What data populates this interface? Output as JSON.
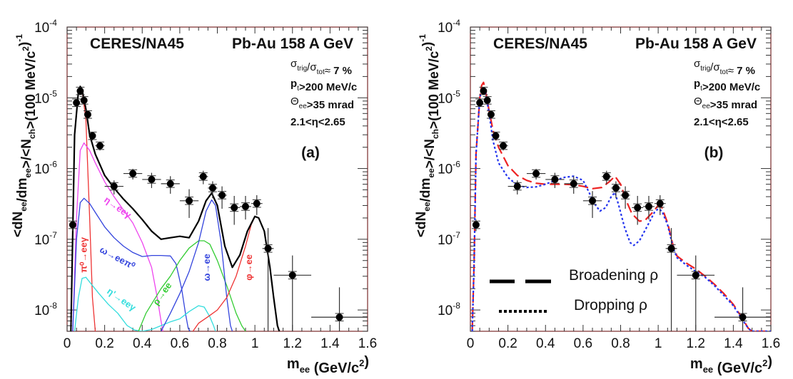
{
  "chart_data": [
    {
      "id": "a",
      "type": "line",
      "panel_label": "(a)",
      "title_left": "CERES/NA45",
      "title_right": "Pb-Au 158 A GeV",
      "annotations": [
        "σtrig/σtot≈ 7 %",
        "pt>200 MeV/c",
        "Θee>35 mrad",
        "2.1<η<2.65"
      ],
      "xlabel": "m_ee (GeV/c^2)",
      "ylabel": "<dN_ee/dm_ee>/<N_ch>(100 MeV/c^2)^-1",
      "xlim": [
        0,
        1.6
      ],
      "ylim": [
        5e-09,
        0.0001
      ],
      "yscale": "log",
      "x_ticks": [
        "0",
        "0.2",
        "0.4",
        "0.6",
        "0.8",
        "1",
        "1.2",
        "1.4",
        "1.6"
      ],
      "y_ticks": [
        "10^-4",
        "10^-5",
        "10^-6",
        "10^-7",
        "10^-8"
      ],
      "data_points": {
        "x": [
          0.03,
          0.05,
          0.07,
          0.09,
          0.11,
          0.135,
          0.175,
          0.25,
          0.35,
          0.45,
          0.55,
          0.65,
          0.725,
          0.775,
          0.825,
          0.89,
          0.95,
          1.01,
          1.07,
          1.2,
          1.45
        ],
        "y": [
          1.6e-07,
          8.5e-06,
          1.25e-05,
          9.2e-06,
          5.8e-06,
          2.9e-06,
          2.1e-06,
          5.6e-07,
          8.5e-07,
          7e-07,
          6.1e-07,
          3.5e-07,
          7.7e-07,
          5.3e-07,
          4.2e-07,
          2.8e-07,
          2.9e-07,
          3.2e-07,
          7.4e-08,
          3.1e-08,
          7.9e-09
        ],
        "xerr": [
          0.01,
          0.01,
          0.01,
          0.01,
          0.01,
          0.015,
          0.025,
          0.05,
          0.05,
          0.05,
          0.05,
          0.05,
          0.025,
          0.025,
          0.025,
          0.03,
          0.03,
          0.03,
          0.03,
          0.1,
          0.15
        ],
        "yerr_lo": [
          3e-08,
          1e-06,
          1.3e-06,
          1e-06,
          7e-07,
          4e-07,
          3e-07,
          1.3e-07,
          1.5e-07,
          1.7e-07,
          1.7e-07,
          1.5e-07,
          1.7e-07,
          1.5e-07,
          1.5e-07,
          1.2e-07,
          1e-07,
          1e-07,
          6.9e-08,
          2.6e-08,
          3e-09
        ],
        "yerr_hi": [
          3e-08,
          1e-06,
          1.3e-06,
          1e-06,
          7e-07,
          4e-07,
          3e-07,
          1.2e-07,
          1.4e-07,
          1.7e-07,
          1.7e-07,
          1.6e-07,
          1.6e-07,
          1.3e-07,
          1.4e-07,
          1.3e-07,
          1.2e-07,
          1e-07,
          7e-08,
          2.8e-08,
          1.3e-08
        ]
      },
      "series": [
        {
          "name": "total cocktail",
          "color": "#000000",
          "style": "solid",
          "x": [
            0.02,
            0.04,
            0.06,
            0.07,
            0.08,
            0.1,
            0.12,
            0.15,
            0.2,
            0.25,
            0.3,
            0.35,
            0.4,
            0.45,
            0.5,
            0.55,
            0.6,
            0.65,
            0.7,
            0.74,
            0.77,
            0.8,
            0.84,
            0.88,
            0.92,
            0.96,
            1.0,
            1.02,
            1.05,
            1.08,
            1.1,
            1.12,
            1.13
          ],
          "y": [
            5e-09,
            3e-06,
            1.2e-05,
            1.45e-05,
            1.3e-05,
            7e-06,
            3e-06,
            1.6e-06,
            8e-07,
            5.3e-07,
            3.7e-07,
            2.7e-07,
            1.9e-07,
            1.3e-07,
            1e-07,
            1.05e-07,
            1.1e-07,
            1.05e-07,
            1.8e-07,
            3.5e-07,
            4.5e-07,
            3e-07,
            8e-08,
            4e-08,
            6e-08,
            1.3e-07,
            2.1e-07,
            2e-07,
            1.3e-07,
            4e-08,
            1.5e-08,
            6e-09,
            5e-09
          ]
        },
        {
          "name": "π⁰→eeγ",
          "color": "#ee3333",
          "style": "solid",
          "x": [
            0.02,
            0.04,
            0.06,
            0.07,
            0.08,
            0.1,
            0.12,
            0.135,
            0.15
          ],
          "y": [
            5e-09,
            3e-06,
            1.2e-05,
            1.35e-05,
            1.25e-05,
            5e-06,
            2e-07,
            1.5e-08,
            5e-09
          ]
        },
        {
          "name": "η→eeγ",
          "color": "#ee44ee",
          "style": "solid",
          "x": [
            0.03,
            0.05,
            0.07,
            0.09,
            0.12,
            0.15,
            0.2,
            0.25,
            0.3,
            0.35,
            0.4,
            0.45,
            0.48,
            0.5,
            0.51
          ],
          "y": [
            5e-09,
            2e-07,
            1.8e-06,
            2.3e-06,
            1.8e-06,
            1.2e-06,
            6.5e-07,
            4e-07,
            2.6e-07,
            1.7e-07,
            9e-08,
            4e-08,
            1.5e-08,
            7e-09,
            5e-09
          ]
        },
        {
          "name": "ω→eeπ⁰",
          "color": "#3344dd",
          "style": "solid",
          "x": [
            0.03,
            0.05,
            0.07,
            0.09,
            0.12,
            0.15,
            0.2,
            0.25,
            0.3,
            0.35,
            0.4,
            0.45,
            0.5,
            0.55,
            0.58,
            0.61,
            0.63,
            0.645,
            0.655
          ],
          "y": [
            5e-09,
            1e-07,
            3.3e-07,
            3.8e-07,
            3.2e-07,
            2.4e-07,
            1.5e-07,
            1.05e-07,
            8e-08,
            6.5e-08,
            5.7e-08,
            5.9e-08,
            5.9e-08,
            5.8e-08,
            4.5e-08,
            2e-08,
            9e-09,
            5.5e-09,
            5e-09
          ]
        },
        {
          "name": "η'→eeγ",
          "color": "#33dddd",
          "style": "solid",
          "x": [
            0.04,
            0.06,
            0.08,
            0.1,
            0.13,
            0.17,
            0.22,
            0.27,
            0.32,
            0.36,
            0.4,
            0.45,
            0.5,
            0.55,
            0.6,
            0.65,
            0.7,
            0.73,
            0.76,
            0.78,
            0.79
          ],
          "y": [
            5e-09,
            1.5e-08,
            2.8e-08,
            2.9e-08,
            2.3e-08,
            1.7e-08,
            1.2e-08,
            9e-09,
            6e-09,
            5.2e-09,
            5e-09,
            5.3e-09,
            6e-09,
            6.8e-09,
            7.5e-09,
            9.5e-09,
            1.15e-08,
            1.1e-08,
            8e-09,
            6e-09,
            5e-09
          ]
        },
        {
          "name": "ρ→ee",
          "color": "#33cc33",
          "style": "solid",
          "x": [
            0.38,
            0.42,
            0.5,
            0.55,
            0.6,
            0.65,
            0.7,
            0.73,
            0.76,
            0.8,
            0.85,
            0.9,
            0.93,
            0.95
          ],
          "y": [
            5e-09,
            9e-09,
            2e-08,
            3e-08,
            5e-08,
            7.5e-08,
            9.5e-08,
            9.5e-08,
            8.5e-08,
            5e-08,
            2.2e-08,
            9e-09,
            6e-09,
            5e-09
          ]
        },
        {
          "name": "ω→ee",
          "color": "#3344dd",
          "style": "solid",
          "x": [
            0.5,
            0.55,
            0.6,
            0.65,
            0.7,
            0.74,
            0.77,
            0.79,
            0.82,
            0.85,
            0.87,
            0.88
          ],
          "y": [
            5e-09,
            9e-09,
            1.7e-08,
            3.5e-08,
            9e-08,
            2.5e-07,
            3.6e-07,
            3e-07,
            9e-08,
            1.5e-08,
            6e-09,
            5e-09
          ]
        },
        {
          "name": "φ→ee",
          "color": "#ee3333",
          "style": "solid",
          "x": [
            0.67,
            0.7,
            0.75,
            0.8,
            0.85,
            0.9,
            0.95,
            0.98,
            1.0,
            1.02,
            1.05,
            1.08,
            1.1,
            1.12,
            1.13
          ],
          "y": [
            5e-09,
            6.5e-09,
            8e-09,
            1e-08,
            1.5e-08,
            3e-08,
            8e-08,
            1.6e-07,
            2.1e-07,
            2e-07,
            1.3e-07,
            4e-08,
            1.5e-08,
            6e-09,
            5e-09
          ]
        }
      ],
      "curve_labels": [
        {
          "text": "π⁰→eeγ",
          "color": "#ee3333",
          "x": 0.105,
          "y": 6e-08,
          "rotate": -90
        },
        {
          "text": "η→eeγ",
          "color": "#ee44ee",
          "x": 0.26,
          "y": 2.6e-07,
          "rotate": 35
        },
        {
          "text": "ω→eeπ⁰",
          "color": "#3344dd",
          "x": 0.26,
          "y": 5e-08,
          "rotate": 28
        },
        {
          "text": "η'→eeγ",
          "color": "#33dddd",
          "x": 0.28,
          "y": 1.3e-08,
          "rotate": 35
        },
        {
          "text": "ρ→ee",
          "color": "#33cc33",
          "x": 0.52,
          "y": 1.6e-08,
          "rotate": -55
        },
        {
          "text": "ω→ee",
          "color": "#3344dd",
          "x": 0.76,
          "y": 4e-08,
          "rotate": -90
        },
        {
          "text": "φ→ee",
          "color": "#ee3333",
          "x": 0.985,
          "y": 4e-08,
          "rotate": -90
        }
      ]
    },
    {
      "id": "b",
      "type": "line",
      "panel_label": "(b)",
      "title_left": "CERES/NA45",
      "title_right": "Pb-Au 158 A GeV",
      "annotations": [
        "σtrig/σtot≈ 7 %",
        "pt>200 MeV/c",
        "Θee>35 mrad",
        "2.1<η<2.65"
      ],
      "xlabel": "m_ee (GeV/c^2)",
      "ylabel": "<dN_ee/dm_ee>/<N_ch>(100 MeV/c^2)^-1",
      "xlim": [
        0,
        1.6
      ],
      "ylim": [
        5e-09,
        0.0001
      ],
      "yscale": "log",
      "x_ticks": [
        "0",
        "0.2",
        "0.4",
        "0.6",
        "0.8",
        "1",
        "1.2",
        "1.4",
        "1.6"
      ],
      "y_ticks": [
        "10^-4",
        "10^-5",
        "10^-6",
        "10^-7",
        "10^-8"
      ],
      "legend": [
        {
          "label": "Broadening ρ",
          "style": "dashed"
        },
        {
          "label": "Dropping ρ",
          "style": "dotted"
        }
      ],
      "data_points": {
        "x": [
          0.03,
          0.05,
          0.07,
          0.09,
          0.11,
          0.135,
          0.175,
          0.25,
          0.35,
          0.45,
          0.55,
          0.65,
          0.725,
          0.775,
          0.825,
          0.89,
          0.95,
          1.01,
          1.07,
          1.2,
          1.45
        ],
        "y": [
          1.6e-07,
          8.5e-06,
          1.25e-05,
          9.2e-06,
          5.8e-06,
          2.9e-06,
          2.1e-06,
          5.6e-07,
          8.5e-07,
          7e-07,
          6.1e-07,
          3.5e-07,
          7.7e-07,
          5.3e-07,
          4.2e-07,
          2.8e-07,
          2.9e-07,
          3.2e-07,
          7.4e-08,
          3.1e-08,
          7.9e-09
        ],
        "xerr": [
          0.01,
          0.01,
          0.01,
          0.01,
          0.01,
          0.015,
          0.025,
          0.05,
          0.05,
          0.05,
          0.05,
          0.05,
          0.025,
          0.025,
          0.025,
          0.03,
          0.03,
          0.03,
          0.03,
          0.1,
          0.15
        ],
        "yerr_lo": [
          3e-08,
          1e-06,
          1.3e-06,
          1e-06,
          7e-07,
          4e-07,
          3e-07,
          1.3e-07,
          1.5e-07,
          1.7e-07,
          1.7e-07,
          1.5e-07,
          1.7e-07,
          1.5e-07,
          1.5e-07,
          1.2e-07,
          1e-07,
          1e-07,
          6.9e-08,
          2.6e-08,
          3e-09
        ],
        "yerr_hi": [
          3e-08,
          1e-06,
          1.3e-06,
          1e-06,
          7e-07,
          4e-07,
          3e-07,
          1.2e-07,
          1.4e-07,
          1.7e-07,
          1.7e-07,
          1.3e-07,
          1.6e-07,
          1.3e-07,
          1.4e-07,
          1.3e-07,
          1.2e-07,
          1e-07,
          7e-08,
          2.8e-08,
          1.3e-08
        ]
      },
      "series": [
        {
          "name": "Broadening ρ",
          "color": "#ee2222",
          "style": "dashed",
          "x": [
            0.01,
            0.02,
            0.03,
            0.05,
            0.06,
            0.07,
            0.08,
            0.1,
            0.12,
            0.15,
            0.2,
            0.25,
            0.3,
            0.35,
            0.4,
            0.45,
            0.5,
            0.55,
            0.6,
            0.65,
            0.7,
            0.74,
            0.77,
            0.8,
            0.83,
            0.86,
            0.9,
            0.93,
            0.97,
            1.0,
            1.02,
            1.05,
            1.08,
            1.1,
            1.15,
            1.2,
            1.25,
            1.3,
            1.35,
            1.4,
            1.45,
            1.48,
            1.5,
            1.6
          ],
          "y": [
            5e-09,
            5e-08,
            1.6e-06,
            1e-05,
            1.5e-05,
            1.65e-05,
            1.3e-05,
            6.5e-06,
            3.5e-06,
            2e-06,
            1.1e-06,
            8e-07,
            6.8e-07,
            6.2e-07,
            6e-07,
            6e-07,
            6e-07,
            5.9e-07,
            5.6e-07,
            5.2e-07,
            5.4e-07,
            6.5e-07,
            7.8e-07,
            6e-07,
            3.5e-07,
            2.3e-07,
            1.8e-07,
            1.85e-07,
            2.4e-07,
            3e-07,
            2.8e-07,
            1.7e-07,
            8e-08,
            5.8e-08,
            4.6e-08,
            3.8e-08,
            3e-08,
            2.3e-08,
            1.7e-08,
            1.2e-08,
            7.5e-09,
            5.5e-09,
            5e-09,
            5e-09
          ]
        },
        {
          "name": "Dropping ρ",
          "color": "#2233ee",
          "style": "dotted",
          "x": [
            0.01,
            0.02,
            0.03,
            0.05,
            0.06,
            0.07,
            0.08,
            0.1,
            0.12,
            0.15,
            0.2,
            0.25,
            0.3,
            0.35,
            0.4,
            0.45,
            0.5,
            0.55,
            0.6,
            0.63,
            0.66,
            0.69,
            0.72,
            0.75,
            0.77,
            0.79,
            0.82,
            0.85,
            0.87,
            0.9,
            0.94,
            0.98,
            1.0,
            1.02,
            1.05,
            1.08,
            1.1,
            1.15,
            1.2,
            1.25,
            1.3,
            1.35,
            1.4,
            1.45,
            1.48,
            1.5,
            1.6
          ],
          "y": [
            5e-09,
            5e-08,
            1.6e-06,
            1e-05,
            1.3e-05,
            1.35e-05,
            1.2e-05,
            6e-06,
            2.5e-06,
            1.2e-06,
            7.5e-07,
            5.8e-07,
            5.4e-07,
            5.5e-07,
            6e-07,
            6.8e-07,
            7.5e-07,
            7.8e-07,
            6.8e-07,
            4.7e-07,
            3.2e-07,
            2.5e-07,
            2.8e-07,
            4e-07,
            4.6e-07,
            3e-07,
            1.5e-07,
            9e-08,
            8.2e-08,
            9.5e-08,
            1.5e-07,
            2.4e-07,
            2.7e-07,
            2.5e-07,
            1.6e-07,
            7.5e-08,
            5.5e-08,
            4.3e-08,
            3.5e-08,
            2.9e-08,
            2.2e-08,
            1.6e-08,
            1.15e-08,
            7.2e-09,
            5.5e-09,
            5e-09,
            5e-09
          ]
        }
      ]
    }
  ]
}
